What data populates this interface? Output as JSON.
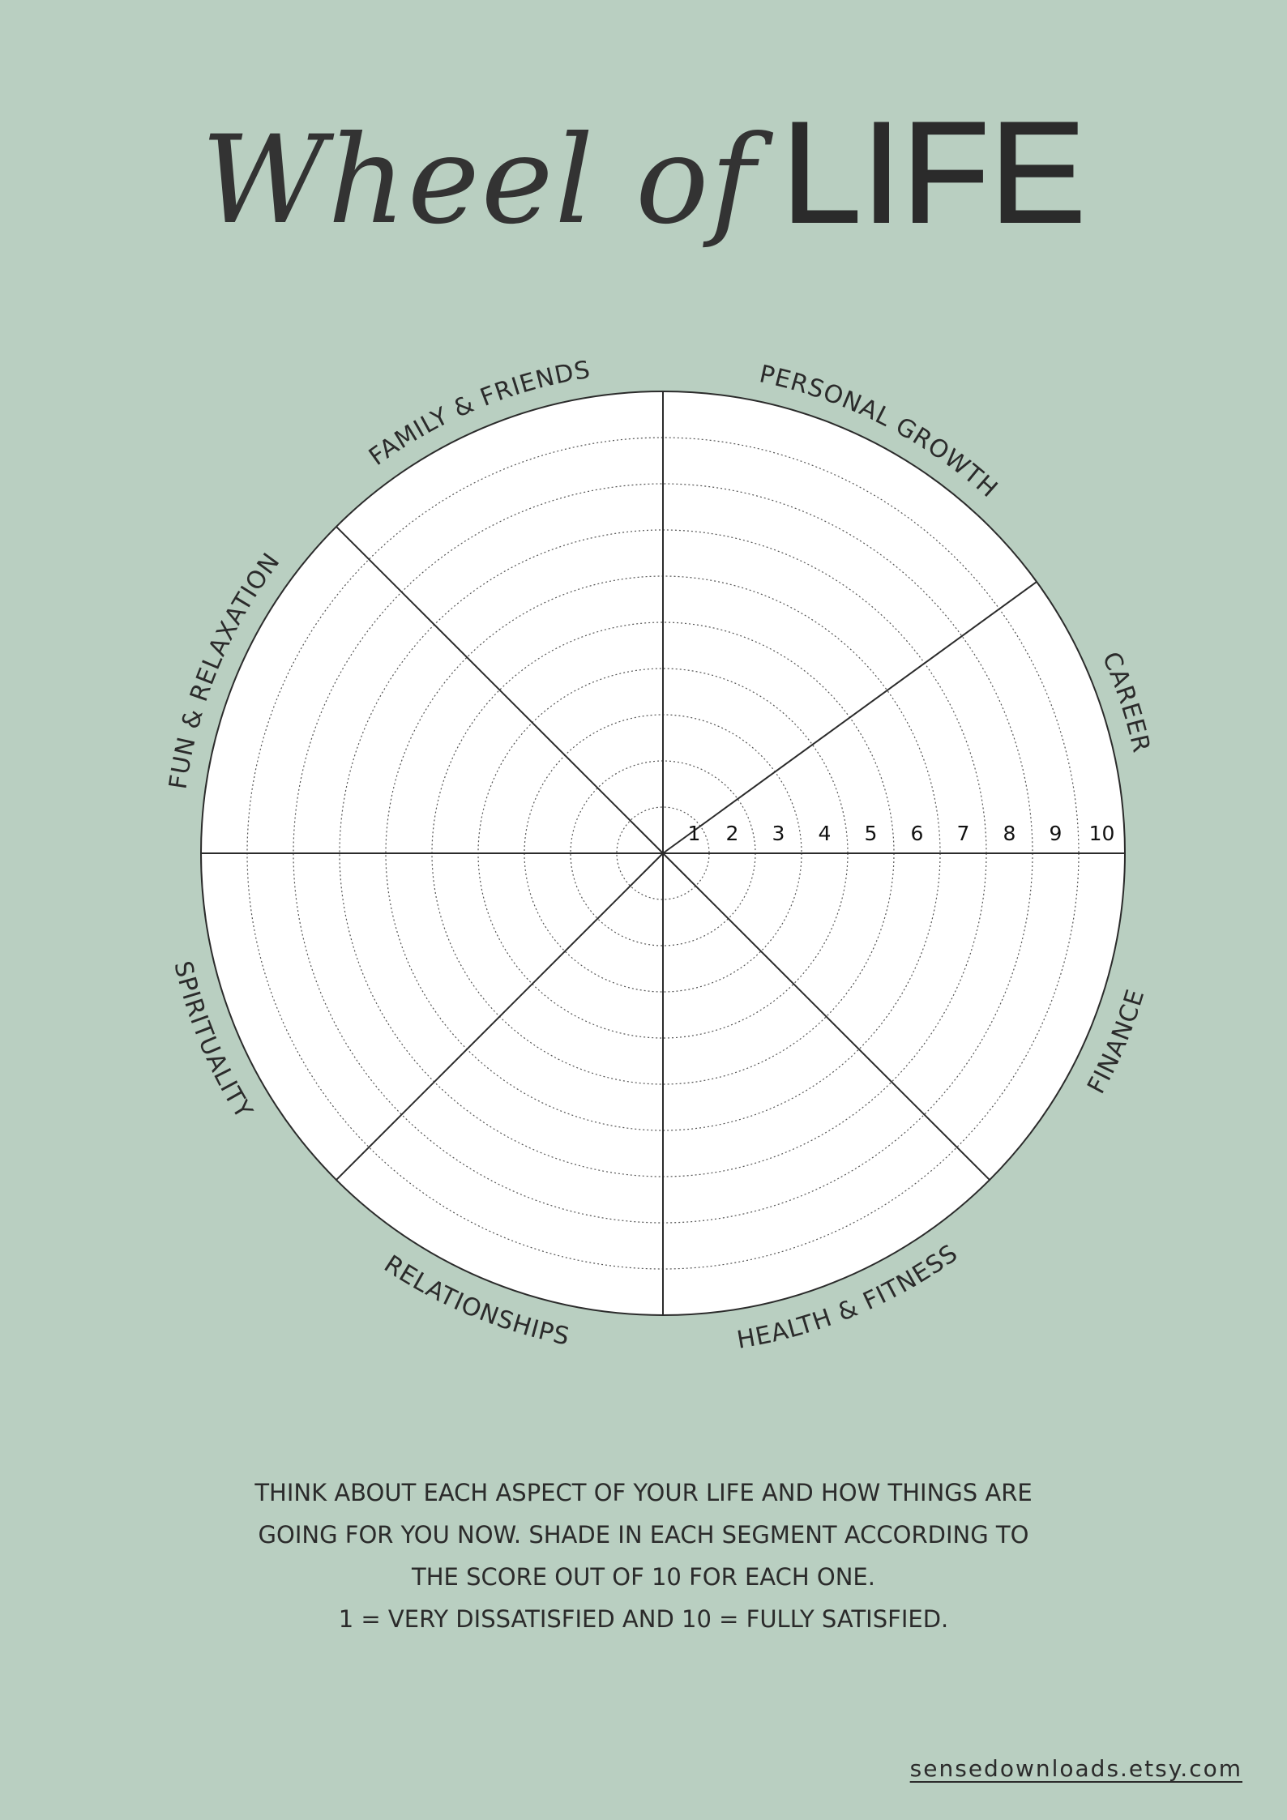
{
  "title": {
    "script_part": "Wheel of",
    "bold_part": "LIFE"
  },
  "wheel": {
    "segments": [
      "PERSONAL GROWTH",
      "CAREER",
      "FINANCE",
      "HEALTH & FITNESS",
      "RELATIONSHIPS",
      "SPIRITUALITY",
      "FUN & RELAXATION",
      "FAMILY & FRIENDS"
    ],
    "scale": [
      "1",
      "2",
      "3",
      "4",
      "5",
      "6",
      "7",
      "8",
      "9",
      "10"
    ],
    "colors": {
      "background": "#b9cfc1",
      "wheel_fill": "#ffffff",
      "lines": "#2b2b2b"
    }
  },
  "instructions": [
    "THINK ABOUT EACH ASPECT OF YOUR LIFE AND HOW THINGS ARE",
    "GOING FOR YOU NOW. SHADE IN EACH SEGMENT ACCORDING TO",
    "THE SCORE OUT OF 10 FOR EACH ONE.",
    "1 = VERY DISSATISFIED AND 10 = FULLY SATISFIED."
  ],
  "footer": {
    "link_text": "sensedownloads.etsy.com"
  }
}
